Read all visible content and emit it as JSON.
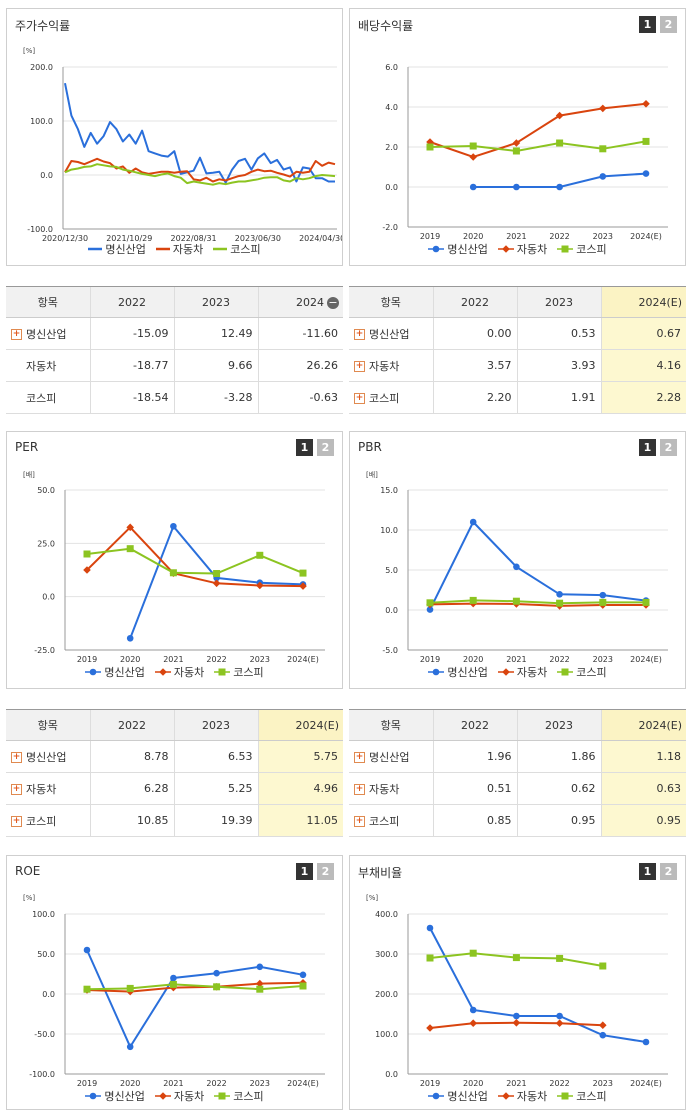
{
  "colors": {
    "series": [
      "#2a6fdb",
      "#d9440e",
      "#8cc421"
    ]
  },
  "legend": [
    "명신산업",
    "자동차",
    "코스피"
  ],
  "panels": {
    "p1": {
      "title": "주가수익률",
      "unit": "[%]"
    },
    "p2": {
      "title": "배당수익률",
      "unit": "[%]"
    },
    "p3": {
      "title": "PER",
      "unit": "[배]"
    },
    "p4": {
      "title": "PBR",
      "unit": "[배]"
    },
    "p5": {
      "title": "ROE",
      "unit": "[%]"
    },
    "p6": {
      "title": "부채비율",
      "unit": "[%]"
    }
  },
  "buttons": {
    "one": "1",
    "two": "2"
  },
  "tables": {
    "t1": {
      "headers": [
        "항목",
        "2022",
        "2023",
        "2024"
      ],
      "rows": [
        {
          "name": "명신산업",
          "plus": true,
          "values": [
            "-15.09",
            "12.49",
            "-11.60"
          ]
        },
        {
          "name": "자동차",
          "plus": false,
          "values": [
            "-18.77",
            "9.66",
            "26.26"
          ]
        },
        {
          "name": "코스피",
          "plus": false,
          "values": [
            "-18.54",
            "-3.28",
            "-0.63"
          ]
        }
      ]
    },
    "t2": {
      "headers": [
        "항목",
        "2022",
        "2023",
        "2024(E)"
      ],
      "rows": [
        {
          "name": "명신산업",
          "plus": true,
          "values": [
            "0.00",
            "0.53",
            "0.67"
          ]
        },
        {
          "name": "자동차",
          "plus": true,
          "values": [
            "3.57",
            "3.93",
            "4.16"
          ]
        },
        {
          "name": "코스피",
          "plus": true,
          "values": [
            "2.20",
            "1.91",
            "2.28"
          ]
        }
      ]
    },
    "t3": {
      "headers": [
        "항목",
        "2022",
        "2023",
        "2024(E)"
      ],
      "rows": [
        {
          "name": "명신산업",
          "plus": true,
          "values": [
            "8.78",
            "6.53",
            "5.75"
          ]
        },
        {
          "name": "자동차",
          "plus": true,
          "values": [
            "6.28",
            "5.25",
            "4.96"
          ]
        },
        {
          "name": "코스피",
          "plus": true,
          "values": [
            "10.85",
            "19.39",
            "11.05"
          ]
        }
      ]
    },
    "t4": {
      "headers": [
        "항목",
        "2022",
        "2023",
        "2024(E)"
      ],
      "rows": [
        {
          "name": "명신산업",
          "plus": true,
          "values": [
            "1.96",
            "1.86",
            "1.18"
          ]
        },
        {
          "name": "자동차",
          "plus": true,
          "values": [
            "0.51",
            "0.62",
            "0.63"
          ]
        },
        {
          "name": "코스피",
          "plus": true,
          "values": [
            "0.85",
            "0.95",
            "0.95"
          ]
        }
      ]
    }
  },
  "chart_data": [
    {
      "id": "c1",
      "type": "line",
      "title": "주가수익률",
      "ylim": [
        -100,
        200
      ],
      "yticks": [
        "200.0",
        "100.0",
        "0.0",
        "-100.0"
      ],
      "xtick_labels": [
        "2020/12/30",
        "2021/10/29",
        "2022/08/31",
        "2023/06/30",
        "2024/04/30"
      ],
      "n_points": 43,
      "series": [
        {
          "name": "명신산업",
          "values": [
            170,
            110,
            85,
            52,
            78,
            58,
            72,
            98,
            85,
            62,
            75,
            58,
            82,
            44,
            40,
            36,
            34,
            44,
            2,
            5,
            8,
            32,
            3,
            4,
            6,
            -14,
            10,
            26,
            30,
            10,
            31,
            40,
            22,
            28,
            10,
            14,
            -12,
            14,
            12,
            -6,
            -6,
            -12,
            -12
          ]
        },
        {
          "name": "자동차",
          "values": [
            5,
            26,
            24,
            20,
            25,
            30,
            25,
            22,
            12,
            16,
            4,
            12,
            5,
            2,
            4,
            6,
            6,
            4,
            6,
            7,
            -8,
            -10,
            -5,
            -12,
            -8,
            -10,
            -6,
            -2,
            0,
            6,
            10,
            7,
            8,
            4,
            1,
            -3,
            6,
            4,
            6,
            26,
            17,
            23,
            20
          ]
        },
        {
          "name": "코스피",
          "values": [
            5,
            10,
            12,
            15,
            16,
            20,
            18,
            16,
            15,
            10,
            8,
            5,
            2,
            0,
            -2,
            1,
            3,
            -2,
            -5,
            -15,
            -12,
            -14,
            -16,
            -18,
            -15,
            -17,
            -14,
            -12,
            -12,
            -10,
            -8,
            -5,
            -4,
            -4,
            -10,
            -12,
            -6,
            -8,
            -6,
            -2,
            0,
            -1,
            -2
          ]
        }
      ]
    },
    {
      "id": "c2",
      "type": "line",
      "title": "배당수익률",
      "ylim": [
        -2,
        6
      ],
      "yticks": [
        "6.0",
        "4.0",
        "2.0",
        "0.0",
        "-2.0"
      ],
      "x": [
        "2019",
        "2020",
        "2021",
        "2022",
        "2023",
        "2024(E)"
      ],
      "series": [
        {
          "name": "명신산업",
          "marker": "circle",
          "values": [
            null,
            0.0,
            0.0,
            0.0,
            0.53,
            0.67
          ]
        },
        {
          "name": "자동차",
          "marker": "diamond",
          "values": [
            2.25,
            1.5,
            2.2,
            3.57,
            3.93,
            4.16
          ]
        },
        {
          "name": "코스피",
          "marker": "square",
          "values": [
            2.0,
            2.05,
            1.8,
            2.2,
            1.91,
            2.28
          ]
        }
      ]
    },
    {
      "id": "c3",
      "type": "line",
      "title": "PER",
      "ylim": [
        -25,
        50
      ],
      "yticks": [
        "50.0",
        "25.0",
        "0.0",
        "-25.0"
      ],
      "x": [
        "2019",
        "2020",
        "2021",
        "2022",
        "2023",
        "2024(E)"
      ],
      "series": [
        {
          "name": "명신산업",
          "marker": "circle",
          "values": [
            null,
            -19.5,
            33,
            8.78,
            6.53,
            5.75
          ]
        },
        {
          "name": "자동차",
          "marker": "diamond",
          "values": [
            12.5,
            32.5,
            11,
            6.28,
            5.25,
            4.96
          ]
        },
        {
          "name": "코스피",
          "marker": "square",
          "values": [
            20,
            22.5,
            11.2,
            10.85,
            19.39,
            11.05
          ]
        }
      ]
    },
    {
      "id": "c4",
      "type": "line",
      "title": "PBR",
      "ylim": [
        -5,
        15
      ],
      "yticks": [
        "15.0",
        "10.0",
        "5.0",
        "0.0",
        "-5.0"
      ],
      "x": [
        "2019",
        "2020",
        "2021",
        "2022",
        "2023",
        "2024(E)"
      ],
      "series": [
        {
          "name": "명신산업",
          "marker": "circle",
          "values": [
            0.05,
            11.0,
            5.4,
            1.96,
            1.86,
            1.18
          ]
        },
        {
          "name": "자동차",
          "marker": "diamond",
          "values": [
            0.7,
            0.8,
            0.75,
            0.51,
            0.62,
            0.63
          ]
        },
        {
          "name": "코스피",
          "marker": "square",
          "values": [
            0.9,
            1.2,
            1.1,
            0.85,
            0.95,
            0.95
          ]
        }
      ]
    },
    {
      "id": "c5",
      "type": "line",
      "title": "ROE",
      "ylim": [
        -100,
        100
      ],
      "yticks": [
        "100.0",
        "50.0",
        "0.0",
        "-50.0",
        "-100.0"
      ],
      "x": [
        "2019",
        "2020",
        "2021",
        "2022",
        "2023",
        "2024(E)"
      ],
      "series": [
        {
          "name": "명신산업",
          "marker": "circle",
          "values": [
            55,
            -66,
            20,
            26,
            34,
            24
          ]
        },
        {
          "name": "자동차",
          "marker": "diamond",
          "values": [
            5,
            3,
            8,
            9,
            13,
            14
          ]
        },
        {
          "name": "코스피",
          "marker": "square",
          "values": [
            6,
            7,
            12,
            9,
            6,
            10
          ]
        }
      ]
    },
    {
      "id": "c6",
      "type": "line",
      "title": "부채비율",
      "ylim": [
        0,
        400
      ],
      "yticks": [
        "400.0",
        "300.0",
        "200.0",
        "100.0",
        "0.0"
      ],
      "x": [
        "2019",
        "2020",
        "2021",
        "2022",
        "2023",
        "2024(E)"
      ],
      "series": [
        {
          "name": "명신산업",
          "marker": "circle",
          "values": [
            365,
            160,
            145,
            145,
            97,
            80
          ]
        },
        {
          "name": "자동차",
          "marker": "diamond",
          "values": [
            115,
            127,
            128,
            127,
            122,
            null
          ]
        },
        {
          "name": "코스피",
          "marker": "square",
          "values": [
            290,
            302,
            291,
            289,
            270,
            null
          ]
        }
      ]
    }
  ]
}
